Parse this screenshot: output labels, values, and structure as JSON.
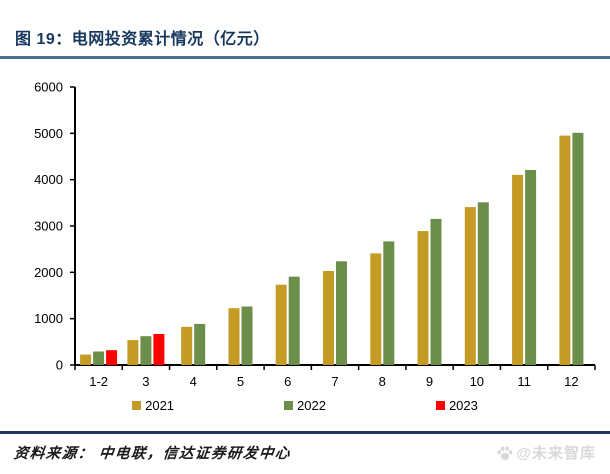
{
  "figure": {
    "title": "图 19：电网投资累计情况（亿元）",
    "source": "资料来源：  中电联，信达证券研发中心",
    "watermark": "@未来智库"
  },
  "colors": {
    "title_navy": "#17375E",
    "rule_top": "#50708F",
    "rule_bottom": "#1F3864",
    "axis": "#000000",
    "tick_label": "#000000",
    "watermark_gray": "#D8D8D8"
  },
  "chart_data": {
    "type": "bar",
    "title": "电网投资累计情况（亿元）",
    "categories": [
      "1-2",
      "3",
      "4",
      "5",
      "6",
      "7",
      "8",
      "9",
      "10",
      "11",
      "12"
    ],
    "series": [
      {
        "name": "2021",
        "color": "#C49B25",
        "values": [
          224,
          538,
          825,
          1225,
          1734,
          2029,
          2409,
          2891,
          3408,
          4102,
          4951
        ]
      },
      {
        "name": "2022",
        "color": "#6B8F4B",
        "values": [
          292,
          621,
          886,
          1263,
          1905,
          2239,
          2667,
          3154,
          3511,
          4209,
          5012
        ]
      },
      {
        "name": "2023",
        "color": "#FF0000",
        "values": [
          319,
          668,
          null,
          null,
          null,
          null,
          null,
          null,
          null,
          null,
          null
        ]
      }
    ],
    "xlabel": "",
    "ylabel": "",
    "ylim": [
      0,
      6000
    ],
    "yticks": [
      0,
      1000,
      2000,
      3000,
      4000,
      5000,
      6000
    ],
    "grid": false,
    "legend_position": "bottom"
  }
}
